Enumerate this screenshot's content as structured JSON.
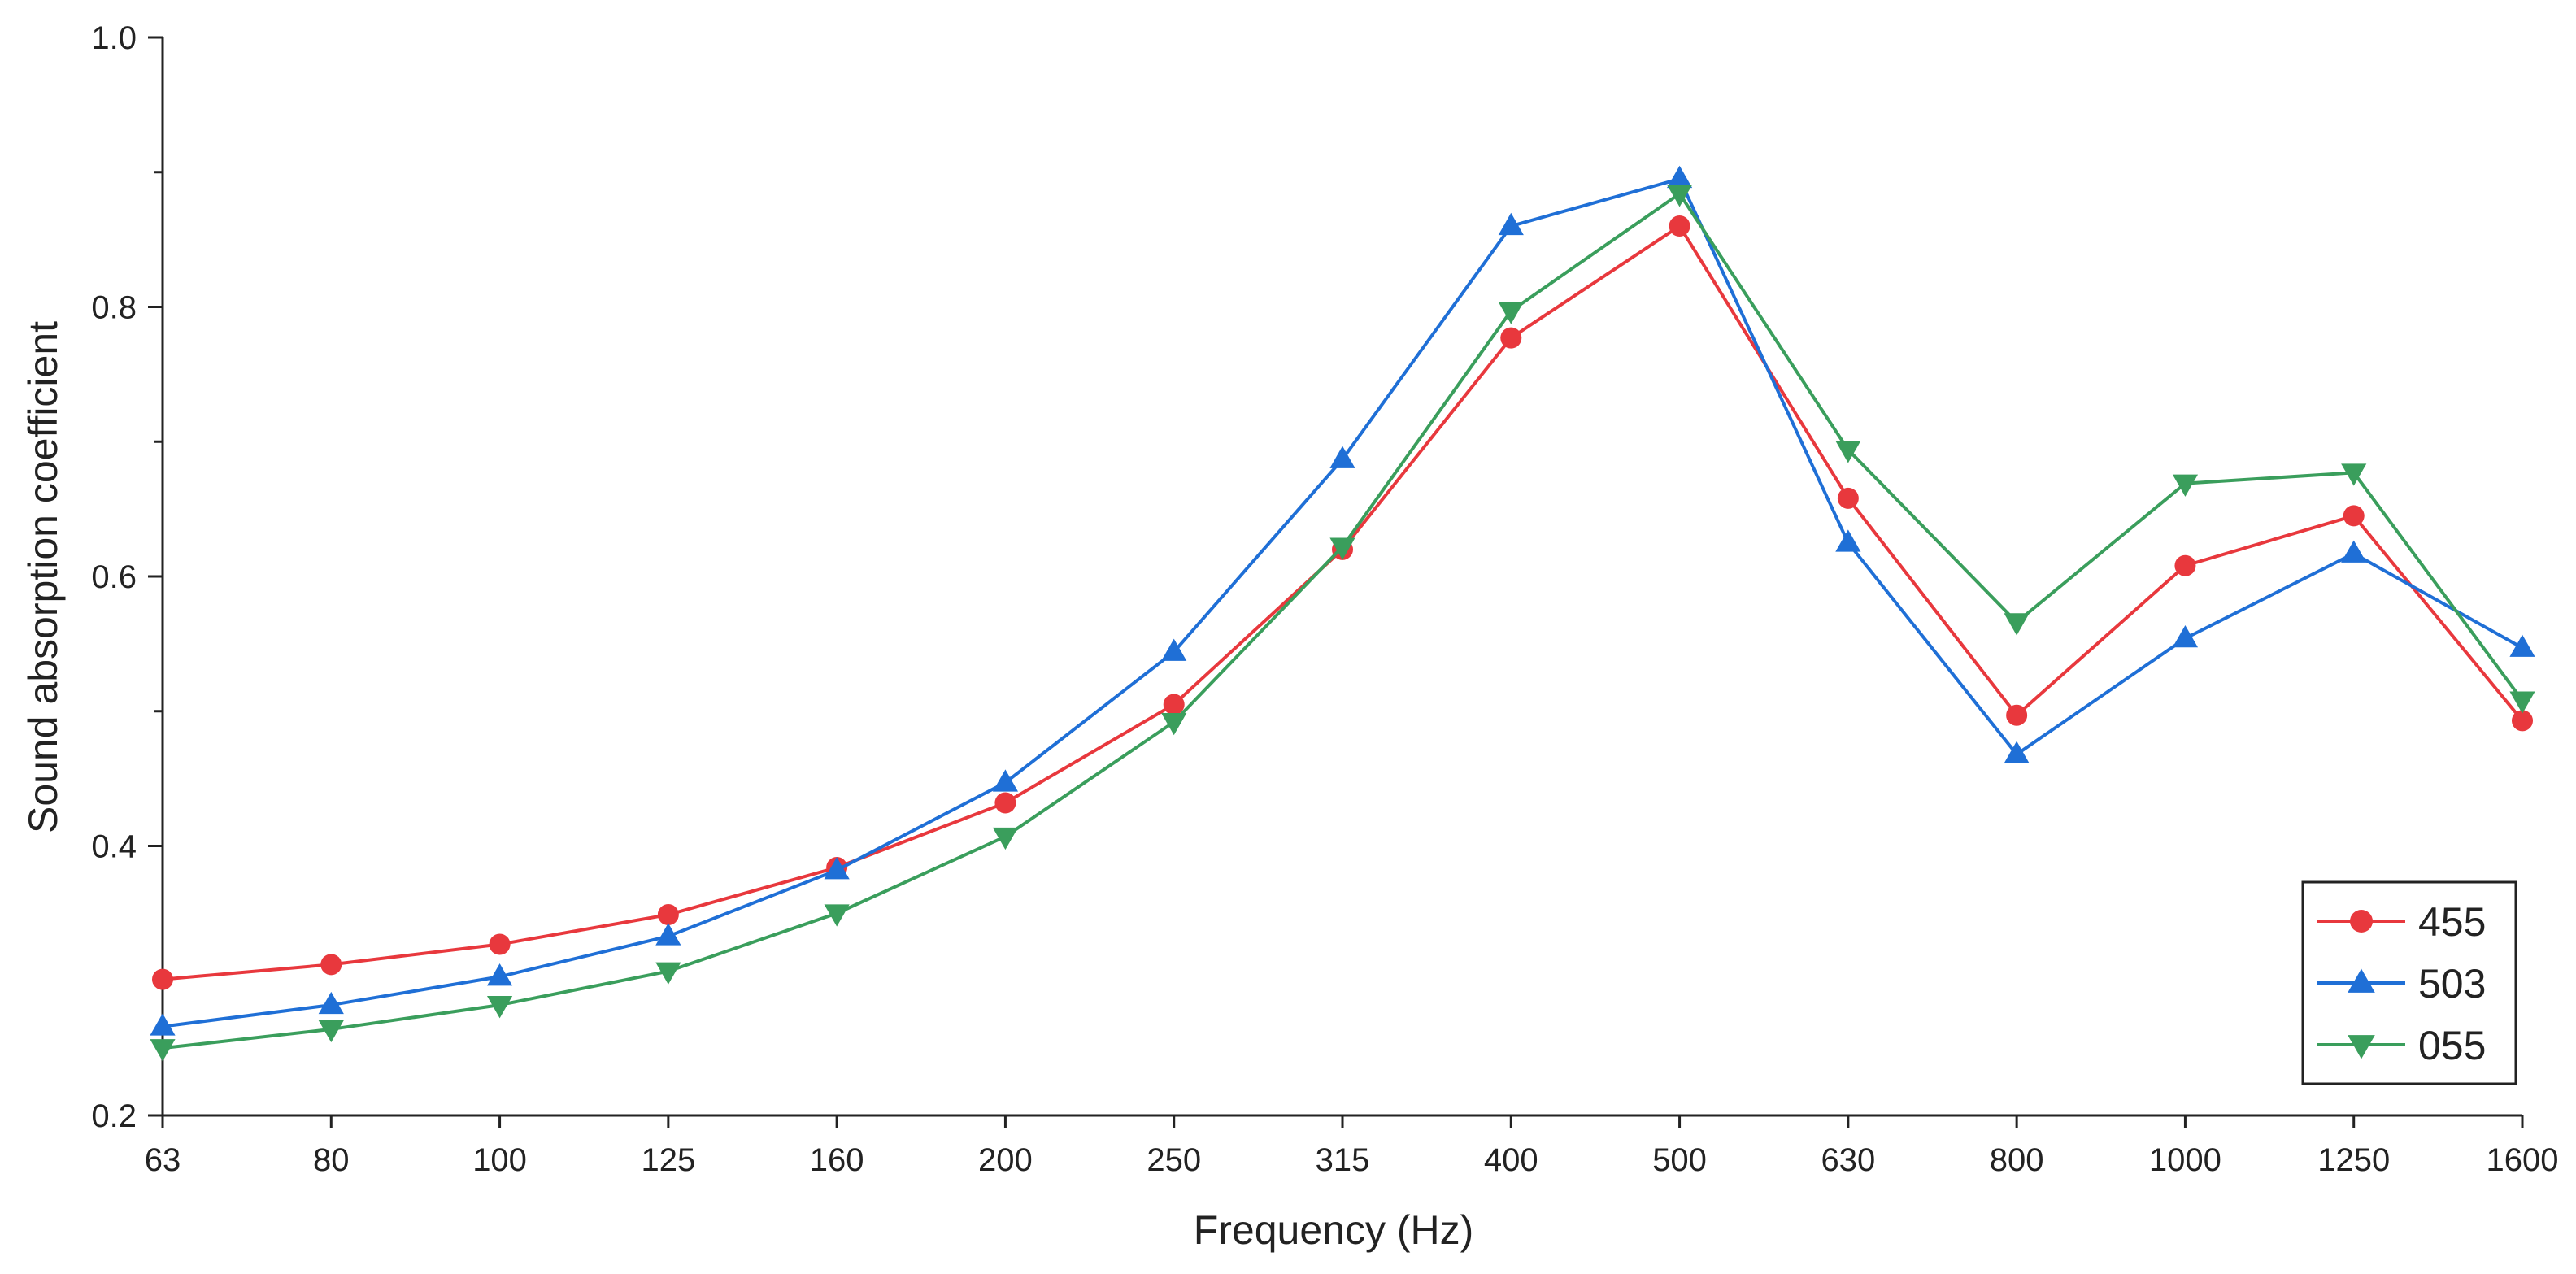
{
  "chart_data": {
    "type": "line",
    "title": "",
    "xlabel": "Frequency (Hz)",
    "ylabel": "Sound absorption coefficient",
    "categories": [
      "63",
      "80",
      "100",
      "125",
      "160",
      "200",
      "250",
      "315",
      "400",
      "500",
      "630",
      "800",
      "1000",
      "1250",
      "1600"
    ],
    "ylim": [
      0.2,
      1.0
    ],
    "yticks": [
      0.2,
      0.4,
      0.6,
      0.8,
      1.0
    ],
    "ytick_labels": [
      "0.2",
      "0.4",
      "0.6",
      "0.8",
      "1.0"
    ],
    "grid": false,
    "legend_position": "bottom-right",
    "series": [
      {
        "name": "455",
        "color": "#e8383d",
        "marker": "circle",
        "values": [
          0.301,
          0.312,
          0.327,
          0.349,
          0.384,
          0.432,
          0.505,
          0.62,
          0.777,
          0.86,
          0.658,
          0.497,
          0.608,
          0.645,
          0.493
        ]
      },
      {
        "name": "503",
        "color": "#1f6fd6",
        "marker": "triangle-up",
        "values": [
          0.266,
          0.282,
          0.303,
          0.333,
          0.382,
          0.447,
          0.544,
          0.687,
          0.86,
          0.895,
          0.625,
          0.468,
          0.554,
          0.617,
          0.547
        ]
      },
      {
        "name": "055",
        "color": "#3a9e5c",
        "marker": "triangle-down",
        "values": [
          0.25,
          0.264,
          0.282,
          0.307,
          0.35,
          0.407,
          0.492,
          0.622,
          0.797,
          0.884,
          0.694,
          0.566,
          0.669,
          0.677,
          0.508
        ]
      }
    ]
  }
}
